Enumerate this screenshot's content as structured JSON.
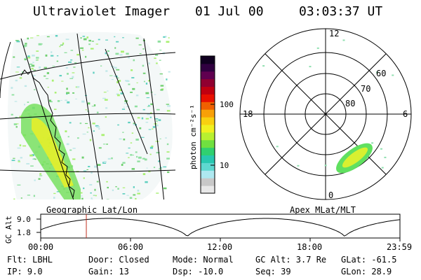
{
  "header": {
    "title": "Ultraviolet Imager",
    "date": "01 Jul 00",
    "time": "03:03:37 UT"
  },
  "left_panel": {
    "caption": "Geographic Lat/Lon"
  },
  "right_panel": {
    "caption": "Apex MLat/MLT",
    "mlt_labels": {
      "top": "12",
      "left": "18",
      "right": "6",
      "bottom": "0"
    },
    "lat_labels": [
      "60",
      "70",
      "80"
    ]
  },
  "colorbar": {
    "unit_label": "photon cm⁻²s⁻¹",
    "ticks": [
      "100",
      "10"
    ],
    "colors": [
      "#e8e8e8",
      "#c8c8c8",
      "#aee8f0",
      "#5ed8d0",
      "#28c8b0",
      "#30d070",
      "#70e040",
      "#b8f030",
      "#f0f020",
      "#f8d010",
      "#f8a008",
      "#f06000",
      "#e81000",
      "#c00010",
      "#900030",
      "#600050",
      "#300040",
      "#100020"
    ]
  },
  "timeline": {
    "y_label": "GC Alt",
    "y_ticks": [
      "9.0",
      "1.8"
    ],
    "x_ticks": [
      "00:00",
      "06:00",
      "12:00",
      "18:00",
      "23:59"
    ],
    "current_time_fraction": 0.127
  },
  "footer": {
    "row1": [
      "Flt: LBHL",
      "Door: Closed",
      "Mode: Normal",
      "GC Alt: 3.7 Re",
      "GLat: -61.5"
    ],
    "row2": [
      "IP:  9.0",
      "Gain: 13",
      "Dsp:  -10.0",
      "Seq: 39",
      "GLon:  28.9"
    ]
  }
}
